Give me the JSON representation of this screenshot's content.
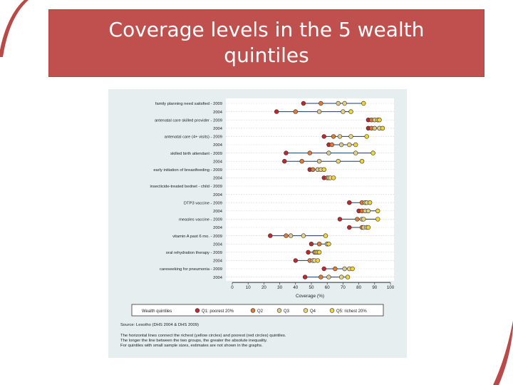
{
  "slide": {
    "title": "Coverage levels in the 5 wealth\nquintiles",
    "accent_color": "#c0504d",
    "swoosh_color": "#b94a48"
  },
  "chart_data": {
    "type": "scatter",
    "title": "",
    "xlabel": "Coverage (%)",
    "ylabel": "",
    "xlim": [
      0,
      100
    ],
    "x_ticks": [
      "0",
      "10",
      "20",
      "30",
      "40",
      "50",
      "60",
      "70",
      "80",
      "90",
      "100"
    ],
    "grid": true,
    "legend_title": "Wealth quintiles",
    "legend_position": "bottom",
    "series": [
      {
        "name": "Q1: poorest 20%",
        "color": "#c0262c"
      },
      {
        "name": "Q2",
        "color": "#e07b32"
      },
      {
        "name": "Q3",
        "color": "#d8c98a"
      },
      {
        "name": "Q4",
        "color": "#ead27a"
      },
      {
        "name": "Q5: richest 20%",
        "color": "#f2d531"
      }
    ],
    "indicators": [
      {
        "label": "family planning need satisfied - 2009",
        "values": [
          45,
          56,
          67,
          71,
          83
        ]
      },
      {
        "label": "2004",
        "values": [
          28,
          40,
          55,
          70,
          75
        ]
      },
      {
        "label": "antenatal care skilled provider - 2009",
        "values": [
          86,
          88,
          90,
          92,
          93
        ]
      },
      {
        "label": "2004",
        "values": [
          86,
          88,
          90,
          93,
          95
        ]
      },
      {
        "label": "antenatal care (4+ visits) - 2009",
        "values": [
          58,
          64,
          68,
          75,
          85
        ]
      },
      {
        "label": "2004",
        "values": [
          61,
          63,
          69,
          74,
          78
        ]
      },
      {
        "label": "skilled birth attendant - 2009",
        "values": [
          34,
          49,
          61,
          78,
          89
        ]
      },
      {
        "label": "2004",
        "values": [
          33,
          44,
          55,
          67,
          82
        ]
      },
      {
        "label": "early initiation of breastfeeding - 2009",
        "values": [
          49,
          51,
          54,
          56,
          58
        ]
      },
      {
        "label": "2004",
        "values": [
          58,
          60,
          61,
          62,
          64
        ]
      },
      {
        "label": "insecticide-treated bednet - child - 2009",
        "values": []
      },
      {
        "label": "2004",
        "values": []
      },
      {
        "label": "DTP3 vaccine - 2009",
        "values": [
          74,
          82,
          84,
          85,
          87
        ]
      },
      {
        "label": "2004",
        "values": [
          80,
          82,
          84,
          86,
          92
        ]
      },
      {
        "label": "measles vaccine - 2009",
        "values": [
          68,
          79,
          82,
          83,
          92
        ]
      },
      {
        "label": "2004",
        "values": [
          74,
          82,
          83,
          85,
          86
        ]
      },
      {
        "label": "vitamin A past 6 mo. - 2009",
        "values": [
          24,
          34,
          37,
          45,
          59
        ]
      },
      {
        "label": "2004",
        "values": [
          50,
          55,
          60,
          60,
          61
        ]
      },
      {
        "label": "oral rehydration therapy - 2009",
        "values": [
          48,
          52,
          53,
          54,
          55
        ]
      },
      {
        "label": "2004",
        "values": [
          40,
          49,
          51,
          52,
          54
        ]
      },
      {
        "label": "careseeking for pneumonia - 2009",
        "values": [
          58,
          65,
          71,
          74,
          76
        ]
      },
      {
        "label": "2004",
        "values": [
          46,
          56,
          61,
          69,
          73
        ]
      }
    ],
    "notes": [
      "Source: Lesotho (DHS 2004 & DHS 2009)",
      "The horizontal lines connect the richest (yellow circles) and poorest (red circles) quintiles.",
      "The longer the line between the two groups, the greater the absolute inequality.",
      "For quintiles with small sample sizes, estimates are not shown in the graphs."
    ]
  }
}
